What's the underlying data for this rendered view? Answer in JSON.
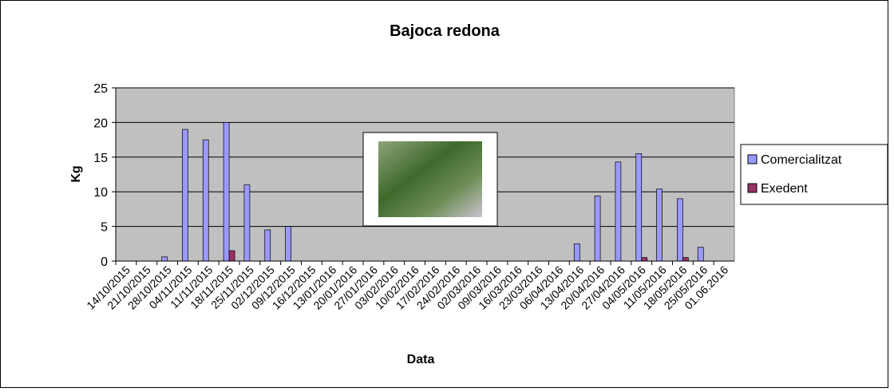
{
  "chart_data": {
    "type": "bar",
    "title": "Bajoca redona",
    "x_label": "Data",
    "y_label": "Kg",
    "categories": [
      "14/10/2015",
      "21/10/2015",
      "28/10/2015",
      "04/11/2015",
      "11/11/2015",
      "18/11/2015",
      "25/11/2015",
      "02/12/2015",
      "09/12/2015",
      "16/12/2015",
      "13/01/2016",
      "20/01/2016",
      "27/01/2016",
      "03/02/2016",
      "10/02/2016",
      "17/02/2016",
      "24/02/2016",
      "02/03/2016",
      "09/03/2016",
      "16/03/2016",
      "23/03/2016",
      "06/04/2016",
      "13/04/2016",
      "20/04/2016",
      "27/04/2016",
      "04/05/2016",
      "11/05/2016",
      "18/05/2016",
      "25/05/2016",
      "01.06.2016"
    ],
    "series": [
      {
        "name": "Comercialitzat",
        "color": "#9999ff",
        "values": [
          0,
          0,
          0.6,
          19,
          17.5,
          20,
          11,
          4.5,
          5,
          0,
          0,
          0,
          0,
          0,
          0,
          0,
          0,
          0,
          0,
          0,
          0,
          0,
          2.5,
          9.4,
          14.3,
          15.5,
          10.4,
          9,
          2,
          0
        ]
      },
      {
        "name": "Exedent",
        "color": "#993366",
        "values": [
          0,
          0,
          0,
          0,
          0,
          1.5,
          0,
          0,
          0,
          0,
          0,
          0,
          0,
          0,
          0,
          0,
          0,
          0,
          0,
          0,
          0,
          0,
          0,
          0,
          0,
          0.5,
          0,
          0.5,
          0,
          0
        ]
      }
    ],
    "ylim": [
      0,
      25
    ],
    "yticks": [
      0,
      5,
      10,
      15,
      20,
      25
    ],
    "grid": true,
    "legend": "right"
  }
}
